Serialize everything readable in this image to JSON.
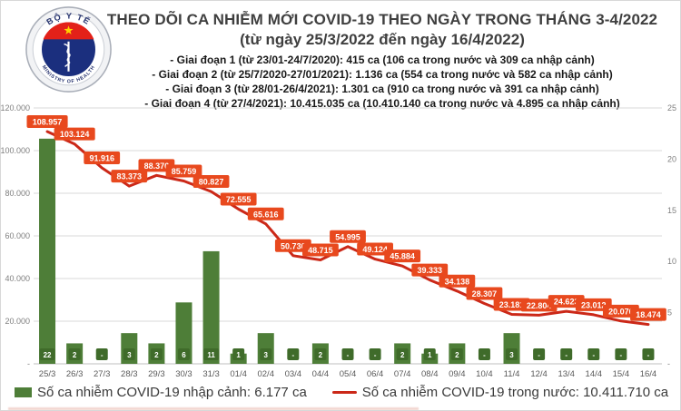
{
  "header": {
    "title": "THEO DÕI CA NHIỄM MỚI COVID-19 THEO NGÀY TRONG THÁNG 3-4/2022",
    "subtitle": "(từ ngày 25/3/2022 đến ngày 16/4/2022)",
    "phases": [
      "- Giai đoạn 1 (từ 23/01-24/7/2020): 415 ca (106 ca trong nước và 309 ca nhập cảnh)",
      "- Giai đoạn 2 (từ 25/7/2020-27/01/2021): 1.136 ca (554 ca trong nước và 582 ca nhập cảnh)",
      "- Giai đoạn 3 (từ 28/01-26/4/2021): 1.301 ca (910 ca trong nước và 391 ca nhập cảnh)",
      "- Giai đoạn 4 (từ 27/4/2021): 10.415.035 ca (10.410.140 ca trong nước và 4.895 ca nhập cảnh)"
    ],
    "logo": {
      "top_text": "BỘ Y TẾ",
      "bottom_text": "MINISTRY OF HEALTH"
    }
  },
  "chart_data": {
    "type": "bar+line combo",
    "categories": [
      "25/3",
      "26/3",
      "27/3",
      "28/3",
      "29/3",
      "30/3",
      "31/3",
      "01/4",
      "02/4",
      "03/4",
      "04/4",
      "05/4",
      "06/4",
      "07/4",
      "08/4",
      "09/4",
      "10/4",
      "11/4",
      "12/4",
      "13/4",
      "14/4",
      "15/4",
      "16/4"
    ],
    "series": [
      {
        "name": "Số ca nhiễm COVID-19 nhập cảnh",
        "type": "bar",
        "axis": "right",
        "values": [
          22,
          2,
          null,
          3,
          2,
          6,
          11,
          1,
          3,
          null,
          2,
          null,
          null,
          2,
          1,
          2,
          null,
          3,
          null,
          null,
          null,
          null,
          null
        ],
        "labels": [
          "22",
          "2",
          "-",
          "3",
          "2",
          "6",
          "11",
          "1",
          "3",
          "-",
          "2",
          "-",
          "-",
          "2",
          "1",
          "2",
          "-",
          "3",
          "-",
          "-",
          "-",
          "-",
          "-"
        ]
      },
      {
        "name": "Số ca nhiễm COVID-19 trong nước",
        "type": "line",
        "axis": "left",
        "values": [
          108957,
          103124,
          91916,
          83373,
          88376,
          85759,
          80827,
          72555,
          65616,
          50730,
          48715,
          54995,
          49124,
          45884,
          39333,
          34138,
          28307,
          23181,
          22804,
          24623,
          23012,
          20076,
          18474
        ],
        "labels": [
          "108.957",
          "103.124",
          "91.916",
          "83.373",
          "88.376",
          "85.759",
          "80.827",
          "72.555",
          "65.616",
          "50.730",
          "48.715",
          "54.995",
          "49.124",
          "45.884",
          "39.333",
          "34.138",
          "28.307",
          "23.181",
          "22.804",
          "24.623",
          "23.012",
          "20.076",
          "18.474"
        ]
      }
    ],
    "left_axis": {
      "max": 120000,
      "tick_values": [
        120000,
        100000,
        80000,
        60000,
        40000,
        20000,
        0
      ],
      "tick_labels": [
        "120.000",
        "100.000",
        "80.000",
        "60.000",
        "40.000",
        "20.000",
        "-"
      ]
    },
    "right_axis": {
      "max": 25,
      "tick_values": [
        25,
        20,
        15,
        10,
        5,
        0
      ],
      "tick_labels": [
        "25",
        "20",
        "15",
        "10",
        "5",
        "-"
      ]
    },
    "grid": "horizontal",
    "legend_position": "bottom",
    "legend": [
      {
        "series": "bar",
        "label": "Số ca nhiễm COVID-19 nhập cảnh: 6.177 ca"
      },
      {
        "series": "line",
        "label": "Số ca nhiễm COVID-19 trong nước: 10.411.710 ca"
      }
    ]
  },
  "colors": {
    "line": "#cb2818",
    "line_label_box": "#e8491e",
    "bar": "#4e7e38",
    "bar_label_box": "#3f6b2a",
    "grid": "#d9d9d9",
    "axis_line": "#bfbfbf",
    "axis_text": "#7f7f7f",
    "date_text": "#595959",
    "label_text": "#ffffff",
    "logo_red": "#e32119",
    "logo_blue": "#1b2f7e",
    "logo_star": "#ffd200"
  }
}
